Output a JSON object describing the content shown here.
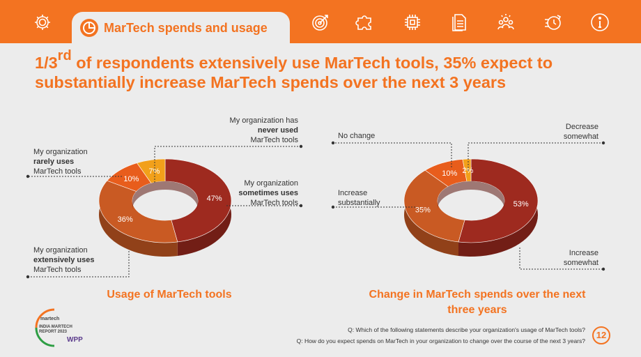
{
  "nav": {
    "active_tab_label": "MarTech spends and usage",
    "icons": [
      "gear-icon",
      "chart-icon",
      "target-icon",
      "puzzle-icon",
      "chip-icon",
      "documents-icon",
      "team-icon",
      "speed-icon",
      "info-icon"
    ]
  },
  "headline": {
    "prefix": "1/3",
    "sup": "rd",
    "text": " of respondents extensively use MarTech tools, 35% expect to substantially increase MarTech spends over the next 3 years"
  },
  "colors": {
    "accent": "#f37321",
    "dark_red": "#9e2a1f",
    "burnt_orange": "#c95a23",
    "orange": "#e85d1c",
    "amber": "#f2a01a"
  },
  "chart_data": [
    {
      "type": "pie",
      "title": "Usage of MarTech tools",
      "slices": [
        {
          "label": "My organization sometimes uses MarTech tools",
          "value": 47,
          "display": "47%",
          "color": "#9e2a1f"
        },
        {
          "label": "My organization extensively uses MarTech tools",
          "value": 36,
          "display": "36%",
          "color": "#c95a23"
        },
        {
          "label": "My organization rarely uses MarTech tools",
          "value": 10,
          "display": "10%",
          "color": "#e85d1c"
        },
        {
          "label": "My organization has never used MarTech tools",
          "value": 7,
          "display": "7%",
          "color": "#f2a01a"
        }
      ]
    },
    {
      "type": "pie",
      "title": "Change in MarTech spends over the next three years",
      "slices": [
        {
          "label": "Increase somewhat",
          "value": 53,
          "display": "53%",
          "color": "#9e2a1f"
        },
        {
          "label": "Increase substantially",
          "value": 35,
          "display": "35%",
          "color": "#c95a23"
        },
        {
          "label": "No change",
          "value": 10,
          "display": "10%",
          "color": "#e85d1c"
        },
        {
          "label": "Decrease somewhat",
          "value": 2,
          "display": "2%",
          "color": "#f2a01a"
        }
      ]
    }
  ],
  "labels": {
    "never_line1": "My organization has",
    "never_bold": "never used",
    "never_line3": "MarTech tools",
    "rarely_line1": "My organization",
    "rarely_bold": "rarely uses",
    "rarely_line3": "MarTech tools",
    "sometimes_line1": "My organization",
    "sometimes_bold": "sometimes uses",
    "sometimes_line3": "MarTech tools",
    "extensively_line1": "My organization",
    "extensively_bold": "extensively uses",
    "extensively_line3": "MarTech tools",
    "no_change": "No change",
    "decrease_line1": "Decrease",
    "decrease_line2": "somewhat",
    "inc_sub_line1": "Increase",
    "inc_sub_line2": "substantially",
    "inc_some_line1": "Increase",
    "inc_some_line2": "somewhat"
  },
  "chart1_title": "Usage of MarTech tools",
  "chart2_title": "Change in MarTech spends over the next three years",
  "questions": {
    "q1": "Q: Which of the following statements describe your organization's usage of MarTech tools?",
    "q2": "Q: How do you expect spends on MarTech in your organization to change over the course of the next 3 years?"
  },
  "page_number": "12",
  "logo": {
    "line1": "martech",
    "line2": "INDIA MARTECH",
    "line3": "REPORT 2023",
    "line4": "WPP"
  }
}
